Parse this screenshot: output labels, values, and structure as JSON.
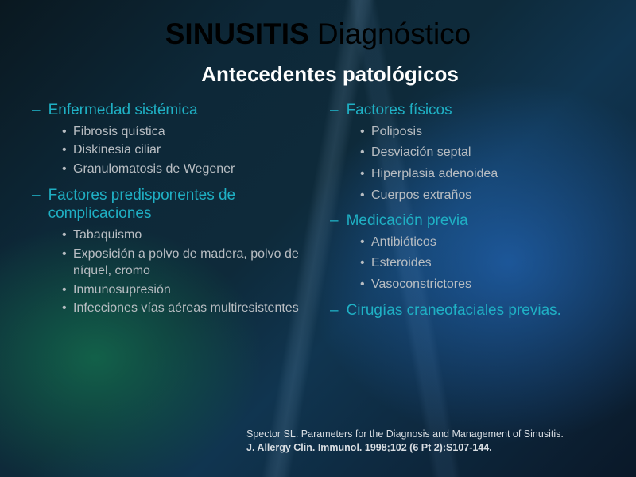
{
  "colors": {
    "heading": "#1fb0c4",
    "bullet_text": "#b8bdc2",
    "title": "#000000",
    "subtitle": "#ffffff",
    "citation": "#d8dde2",
    "bg_base": "#0d2838",
    "bg_green_glow": "#147850",
    "bg_blue_glow": "#2878dc"
  },
  "typography": {
    "title_fontsize": 37,
    "subtitle_fontsize": 26,
    "heading_fontsize": 19,
    "bullet_fontsize": 16,
    "citation_fontsize": 12.5,
    "font_family": "Arial"
  },
  "title_bold": "SINUSITIS",
  "title_rest": " Diagnóstico",
  "subtitle": "Antecedentes patológicos",
  "left": {
    "s1": {
      "heading": "Enfermedad sistémica",
      "b1": "Fibrosis quística",
      "b2": "Diskinesia ciliar",
      "b3": "Granulomatosis de Wegener"
    },
    "s2": {
      "heading": "Factores predisponentes de complicaciones",
      "b1": "Tabaquismo",
      "b2": "Exposición a polvo de madera, polvo de níquel, cromo",
      "b3": "Inmunosupresión",
      "b4": "Infecciones vías aéreas multiresistentes"
    }
  },
  "right": {
    "s1": {
      "heading": "Factores físicos",
      "b1": "Poliposis",
      "b2": "Desviación septal",
      "b3": "Hiperplasia adenoidea",
      "b4": "Cuerpos extraños"
    },
    "s2": {
      "heading": "Medicación previa",
      "b1": "Antibióticos",
      "b2": "Esteroides",
      "b3": "Vasoconstrictores"
    },
    "s3": {
      "heading": "Cirugías craneofaciales previas."
    }
  },
  "citation": {
    "line1": "Spector SL. Parameters for the Diagnosis and Management of Sinusitis.",
    "line2": "J. Allergy Clin. Immunol. 1998;102 (6 Pt 2):S107-144."
  }
}
